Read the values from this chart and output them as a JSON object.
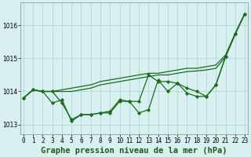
{
  "xlabel": "Graphe pression niveau de la mer (hPa)",
  "x": [
    0,
    1,
    2,
    3,
    4,
    5,
    6,
    7,
    8,
    9,
    10,
    11,
    12,
    13,
    14,
    15,
    16,
    17,
    18,
    19,
    20,
    21,
    22,
    23
  ],
  "series_smooth1": [
    1013.8,
    1014.05,
    1014.0,
    1014.0,
    1014.05,
    1014.1,
    1014.15,
    1014.2,
    1014.3,
    1014.35,
    1014.4,
    1014.45,
    1014.5,
    1014.55,
    1014.55,
    1014.6,
    1014.65,
    1014.7,
    1014.7,
    1014.75,
    1014.8,
    1015.1,
    1015.75,
    1016.35
  ],
  "series_smooth2": [
    1013.8,
    1014.05,
    1014.0,
    1014.0,
    1014.0,
    1014.0,
    1014.05,
    1014.1,
    1014.2,
    1014.25,
    1014.3,
    1014.35,
    1014.4,
    1014.45,
    1014.5,
    1014.5,
    1014.55,
    1014.6,
    1014.62,
    1014.65,
    1014.7,
    1015.05,
    1015.72,
    1016.35
  ],
  "series_zigzag1": [
    1013.8,
    1014.05,
    1014.0,
    1013.65,
    1013.75,
    1013.1,
    1013.3,
    1013.3,
    1013.35,
    1013.35,
    1013.7,
    1013.7,
    1013.35,
    1013.45,
    1014.35,
    1014.0,
    1014.25,
    1013.95,
    1013.85,
    1013.85,
    1014.2,
    1015.05,
    1015.75,
    1016.35
  ],
  "series_zigzag2": [
    1013.8,
    1014.05,
    1014.0,
    1014.0,
    1013.65,
    1013.15,
    1013.3,
    1013.3,
    1013.35,
    1013.4,
    1013.75,
    1013.7,
    1013.7,
    1014.5,
    1014.3,
    1014.3,
    1014.25,
    1014.1,
    1014.0,
    1013.85,
    1014.2,
    1015.05,
    1015.75,
    1016.35
  ],
  "line_color": "#1a6b1a",
  "bg_color": "#d8f0f0",
  "grid_color": "#b0d8d8",
  "ylim": [
    1012.7,
    1016.7
  ],
  "yticks": [
    1013,
    1014,
    1015,
    1016
  ],
  "xlim": [
    -0.3,
    23.3
  ],
  "xlabel_fontsize": 7.5,
  "tick_fontsize": 5.5
}
